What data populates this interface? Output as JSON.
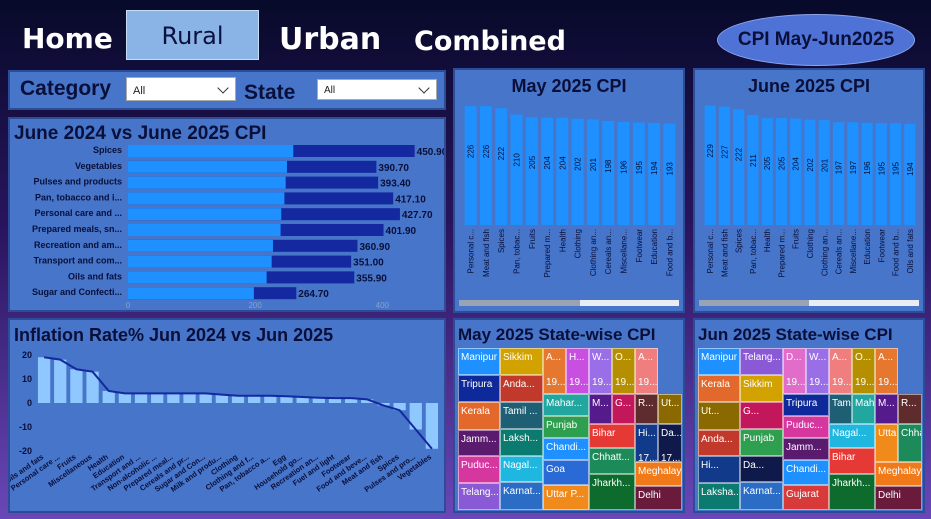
{
  "nav": {
    "home": "Home",
    "rural": "Rural",
    "urban": "Urban",
    "combined": "Combined",
    "period": "CPI May-Jun2025"
  },
  "filters": {
    "category_label": "Category",
    "category_value": "All",
    "state_label": "State",
    "state_value": "All"
  },
  "colors": {
    "bar_light": "#1e90ff",
    "bar_dark": "#1428a0",
    "panel": "#4675c9"
  },
  "yoy": {
    "title": "June 2024 vs June 2025 CPI",
    "chart_data": {
      "type": "bar",
      "orientation": "horizontal",
      "categories": [
        "Spices",
        "Vegetables",
        "Pulses and products",
        "Pan, tobacco and i...",
        "Personal care and ...",
        "Prepared meals, sn...",
        "Recreation and am...",
        "Transport and com...",
        "Oils and fats",
        "Sugar and Confecti..."
      ],
      "series": [
        {
          "values": [
            260,
            250,
            248,
            246,
            241,
            240,
            228,
            226,
            218,
            198
          ]
        },
        {
          "values": [
            450.9,
            390.7,
            393.4,
            417.1,
            427.7,
            401.9,
            360.9,
            351.0,
            355.9,
            264.7
          ]
        }
      ],
      "value_labels": [
        "450.90",
        "390.70",
        "393.40",
        "417.10",
        "427.70",
        "401.90",
        "360.90",
        "351.00",
        "355.90",
        "264.70"
      ],
      "x_ticks": [
        "0",
        "200",
        "400"
      ],
      "xlim": [
        0,
        475
      ]
    }
  },
  "may_cpi": {
    "title": "May 2025 CPI",
    "chart_data": {
      "type": "bar",
      "categories": [
        "Personal c...",
        "Meat and fish",
        "Spices",
        "Pan, tobac...",
        "Fruits",
        "Prepared m...",
        "Health",
        "Clothing",
        "Clothing an...",
        "Cereals an...",
        "Miscellane...",
        "Footwear",
        "Education",
        "Food and b..."
      ],
      "values": [
        226,
        226,
        222,
        210,
        205,
        204,
        204,
        202,
        201,
        198,
        196,
        195,
        194,
        193
      ],
      "ylim": [
        0,
        230
      ]
    }
  },
  "jun_cpi": {
    "title": "June 2025 CPI",
    "chart_data": {
      "type": "bar",
      "categories": [
        "Personal c...",
        "Meat and fish",
        "Spices",
        "Pan, tobac...",
        "Health",
        "Prepared m...",
        "Fruits",
        "Clothing",
        "Clothing an...",
        "Cereals an...",
        "Miscellane...",
        "Education",
        "Footwear",
        "Food and b...",
        "Oils and fats"
      ],
      "values": [
        229,
        227,
        222,
        211,
        205,
        205,
        204,
        202,
        201,
        197,
        197,
        196,
        195,
        195,
        194
      ],
      "ylim": [
        0,
        232
      ]
    }
  },
  "inflation": {
    "title": "Inflation Rate% Jun 2024 vs Jun 2025",
    "chart_data": {
      "type": "bar",
      "categories": [
        "Oils and fats",
        "Personal care ...",
        "Fruits",
        "Miscellaneous",
        "Health",
        "Education",
        "Transport and ...",
        "Non-alcoholic ...",
        "Prepared meal...",
        "Cereals and pr...",
        "Sugar and Con...",
        "Milk and produ...",
        "Clothing",
        "Clothing and f...",
        "Pan, tobacco a...",
        "Egg",
        "Household go...",
        "Recreation an...",
        "Fuel and light",
        "Footwear",
        "Food and beve...",
        "Meat and fish",
        "Spices",
        "Pulses and pro...",
        "Vegetables"
      ],
      "values": [
        19,
        18,
        14,
        13,
        5,
        4,
        4,
        4,
        4,
        4,
        4,
        3.5,
        3,
        3,
        3,
        2.8,
        2.5,
        2.2,
        2,
        2,
        1.5,
        -1,
        -3,
        -11,
        -19
      ],
      "y_ticks": [
        "20",
        "10",
        "0",
        "-10",
        "-20"
      ],
      "ylim": [
        -22,
        22
      ]
    }
  },
  "may_state": {
    "title": "May 2025 State-wise CPI",
    "cells": [
      {
        "label": "Manipur",
        "value": "",
        "color": "#1e90ff"
      },
      {
        "label": "Sikkim",
        "value": "",
        "color": "#d2a200"
      },
      {
        "label": "A...",
        "value": "19...",
        "color": "#e6772e"
      },
      {
        "label": "H...",
        "value": "19...",
        "color": "#c94fe0"
      },
      {
        "label": "W...",
        "value": "19...",
        "color": "#9a6ee6"
      },
      {
        "label": "O...",
        "value": "19...",
        "color": "#b58f00"
      },
      {
        "label": "A...",
        "value": "19...",
        "color": "#f07e7e"
      },
      {
        "label": "Tripura",
        "value": "",
        "color": "#0e2a9a"
      },
      {
        "label": "Anda...",
        "value": "",
        "color": "#c0392b"
      },
      {
        "label": "Mahar...",
        "value": "",
        "color": "#22a7a0"
      },
      {
        "label": "M...",
        "value": "18...",
        "color": "#551a8b"
      },
      {
        "label": "G...",
        "value": "18...",
        "color": "#c2185b"
      },
      {
        "label": "R...",
        "value": "18...",
        "color": "#5e2c2c"
      },
      {
        "label": "Ut...",
        "value": "18...",
        "color": "#8a6a00"
      },
      {
        "label": "Kerala",
        "value": "",
        "color": "#e3682c"
      },
      {
        "label": "Tamil ...",
        "value": "",
        "color": "#1e5f74"
      },
      {
        "label": "Punjab",
        "value": "",
        "color": "#2e9e4f"
      },
      {
        "label": "Jamm...",
        "value": "",
        "color": "#5a1a6e"
      },
      {
        "label": "Laksh...",
        "value": "",
        "color": "#0b7b70"
      },
      {
        "label": "Chandi...",
        "value": "",
        "color": "#1e90ff"
      },
      {
        "label": "Bihar",
        "value": "",
        "color": "#e53935"
      },
      {
        "label": "Hi...",
        "value": "17...",
        "color": "#123a8a"
      },
      {
        "label": "Da...",
        "value": "17...",
        "color": "#101a4a"
      },
      {
        "label": "Puduc...",
        "value": "",
        "color": "#d6379f"
      },
      {
        "label": "Nagal...",
        "value": "",
        "color": "#1fb7e0"
      },
      {
        "label": "Goa",
        "value": "",
        "color": "#2a6ad6"
      },
      {
        "label": "Chhatt...",
        "value": "",
        "color": "#1d8a5a"
      },
      {
        "label": "Meghalaya",
        "value": "",
        "color": "#f07a1a"
      },
      {
        "label": "Telang...",
        "value": "",
        "color": "#8a5ad6"
      },
      {
        "label": "Karnat...",
        "value": "",
        "color": "#2b6cc4"
      },
      {
        "label": "Uttar P...",
        "value": "",
        "color": "#f08a1a"
      },
      {
        "label": "Jharkh...",
        "value": "",
        "color": "#0e6b2e"
      },
      {
        "label": "Delhi",
        "value": "",
        "color": "#6a1a3a"
      }
    ]
  },
  "jun_state": {
    "title": "Jun 2025 State-wise CPI",
    "cells": [
      {
        "label": "Manipur",
        "value": "",
        "color": "#1e90ff"
      },
      {
        "label": "Telang...",
        "value": "",
        "color": "#8a5ad6"
      },
      {
        "label": "D...",
        "value": "19...",
        "color": "#e26cc9"
      },
      {
        "label": "W...",
        "value": "19...",
        "color": "#9a6ee6"
      },
      {
        "label": "A...",
        "value": "19...",
        "color": "#f07e7e"
      },
      {
        "label": "O...",
        "value": "19...",
        "color": "#b58f00"
      },
      {
        "label": "A...",
        "value": "19...",
        "color": "#e6772e"
      },
      {
        "label": "Kerala",
        "value": "",
        "color": "#e3682c"
      },
      {
        "label": "Sikkim",
        "value": "",
        "color": "#d2a200"
      },
      {
        "label": "Tripura",
        "value": "",
        "color": "#0e2a9a"
      },
      {
        "label": "Tamil ...",
        "value": "",
        "color": "#1e5f74"
      },
      {
        "label": "Mahar...",
        "value": "",
        "color": "#22a7a0"
      },
      {
        "label": "M...",
        "value": "18...",
        "color": "#551a8b"
      },
      {
        "label": "R...",
        "value": "18...",
        "color": "#5e2c2c"
      },
      {
        "label": "Ut...",
        "value": "18...",
        "color": "#8a6a00"
      },
      {
        "label": "G...",
        "value": "18...",
        "color": "#c2185b"
      },
      {
        "label": "Puduc...",
        "value": "",
        "color": "#d6379f"
      },
      {
        "label": "Anda...",
        "value": "",
        "color": "#c0392b"
      },
      {
        "label": "Punjab",
        "value": "",
        "color": "#2e9e4f"
      },
      {
        "label": "Jamm...",
        "value": "",
        "color": "#5a1a6e"
      },
      {
        "label": "Nagal...",
        "value": "",
        "color": "#1fb7e0"
      },
      {
        "label": "Uttar P...",
        "value": "",
        "color": "#f08a1a"
      },
      {
        "label": "Chhatt...",
        "value": "",
        "color": "#1d8a5a"
      },
      {
        "label": "Hi...",
        "value": "182...",
        "color": "#123a8a"
      },
      {
        "label": "Da...",
        "value": "18...",
        "color": "#101a4a"
      },
      {
        "label": "Chandi...",
        "value": "",
        "color": "#1e90ff"
      },
      {
        "label": "Bihar",
        "value": "",
        "color": "#e53935"
      },
      {
        "label": "Meghalaya",
        "value": "",
        "color": "#f07a1a"
      },
      {
        "label": "Laksha...",
        "value": "",
        "color": "#0b7b70"
      },
      {
        "label": "Karnat...",
        "value": "",
        "color": "#2b6cc4"
      },
      {
        "label": "Gujarat",
        "value": "",
        "color": "#d83a3a"
      },
      {
        "label": "Jharkh...",
        "value": "",
        "color": "#0e6b2e"
      },
      {
        "label": "Delhi",
        "value": "",
        "color": "#6a1a3a"
      }
    ]
  }
}
